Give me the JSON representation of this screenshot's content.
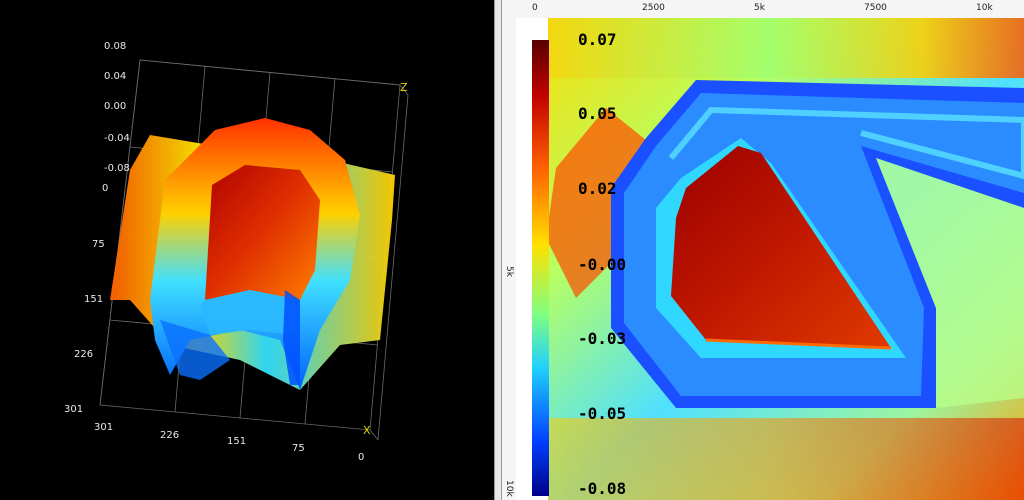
{
  "left_panel": {
    "z_axis_ticks": [
      "0.08",
      "0.04",
      "0.00",
      "-0.04",
      "-0.08"
    ],
    "row_ticks": [
      "0",
      "75",
      "151",
      "226",
      "301"
    ],
    "col_ticks": [
      "301",
      "226",
      "151",
      "75",
      "0"
    ],
    "z_axis_label": "Z",
    "x_axis_label": "X"
  },
  "right_panel": {
    "top_ruler_ticks": [
      "0",
      "2500",
      "5k",
      "7500",
      "10k"
    ],
    "left_ruler_ticks": [
      "5k",
      "10k"
    ],
    "colorbar_ticks": [
      "0.07",
      "0.05",
      "0.02",
      "-0.00",
      "-0.03",
      "-0.05",
      "-0.08"
    ]
  },
  "colors": {
    "red": "#c81010",
    "orange": "#ff7a00",
    "yellow": "#f5e800",
    "cyan": "#33d6ff",
    "blue": "#0a3cff",
    "darkred": "#7a0000"
  }
}
